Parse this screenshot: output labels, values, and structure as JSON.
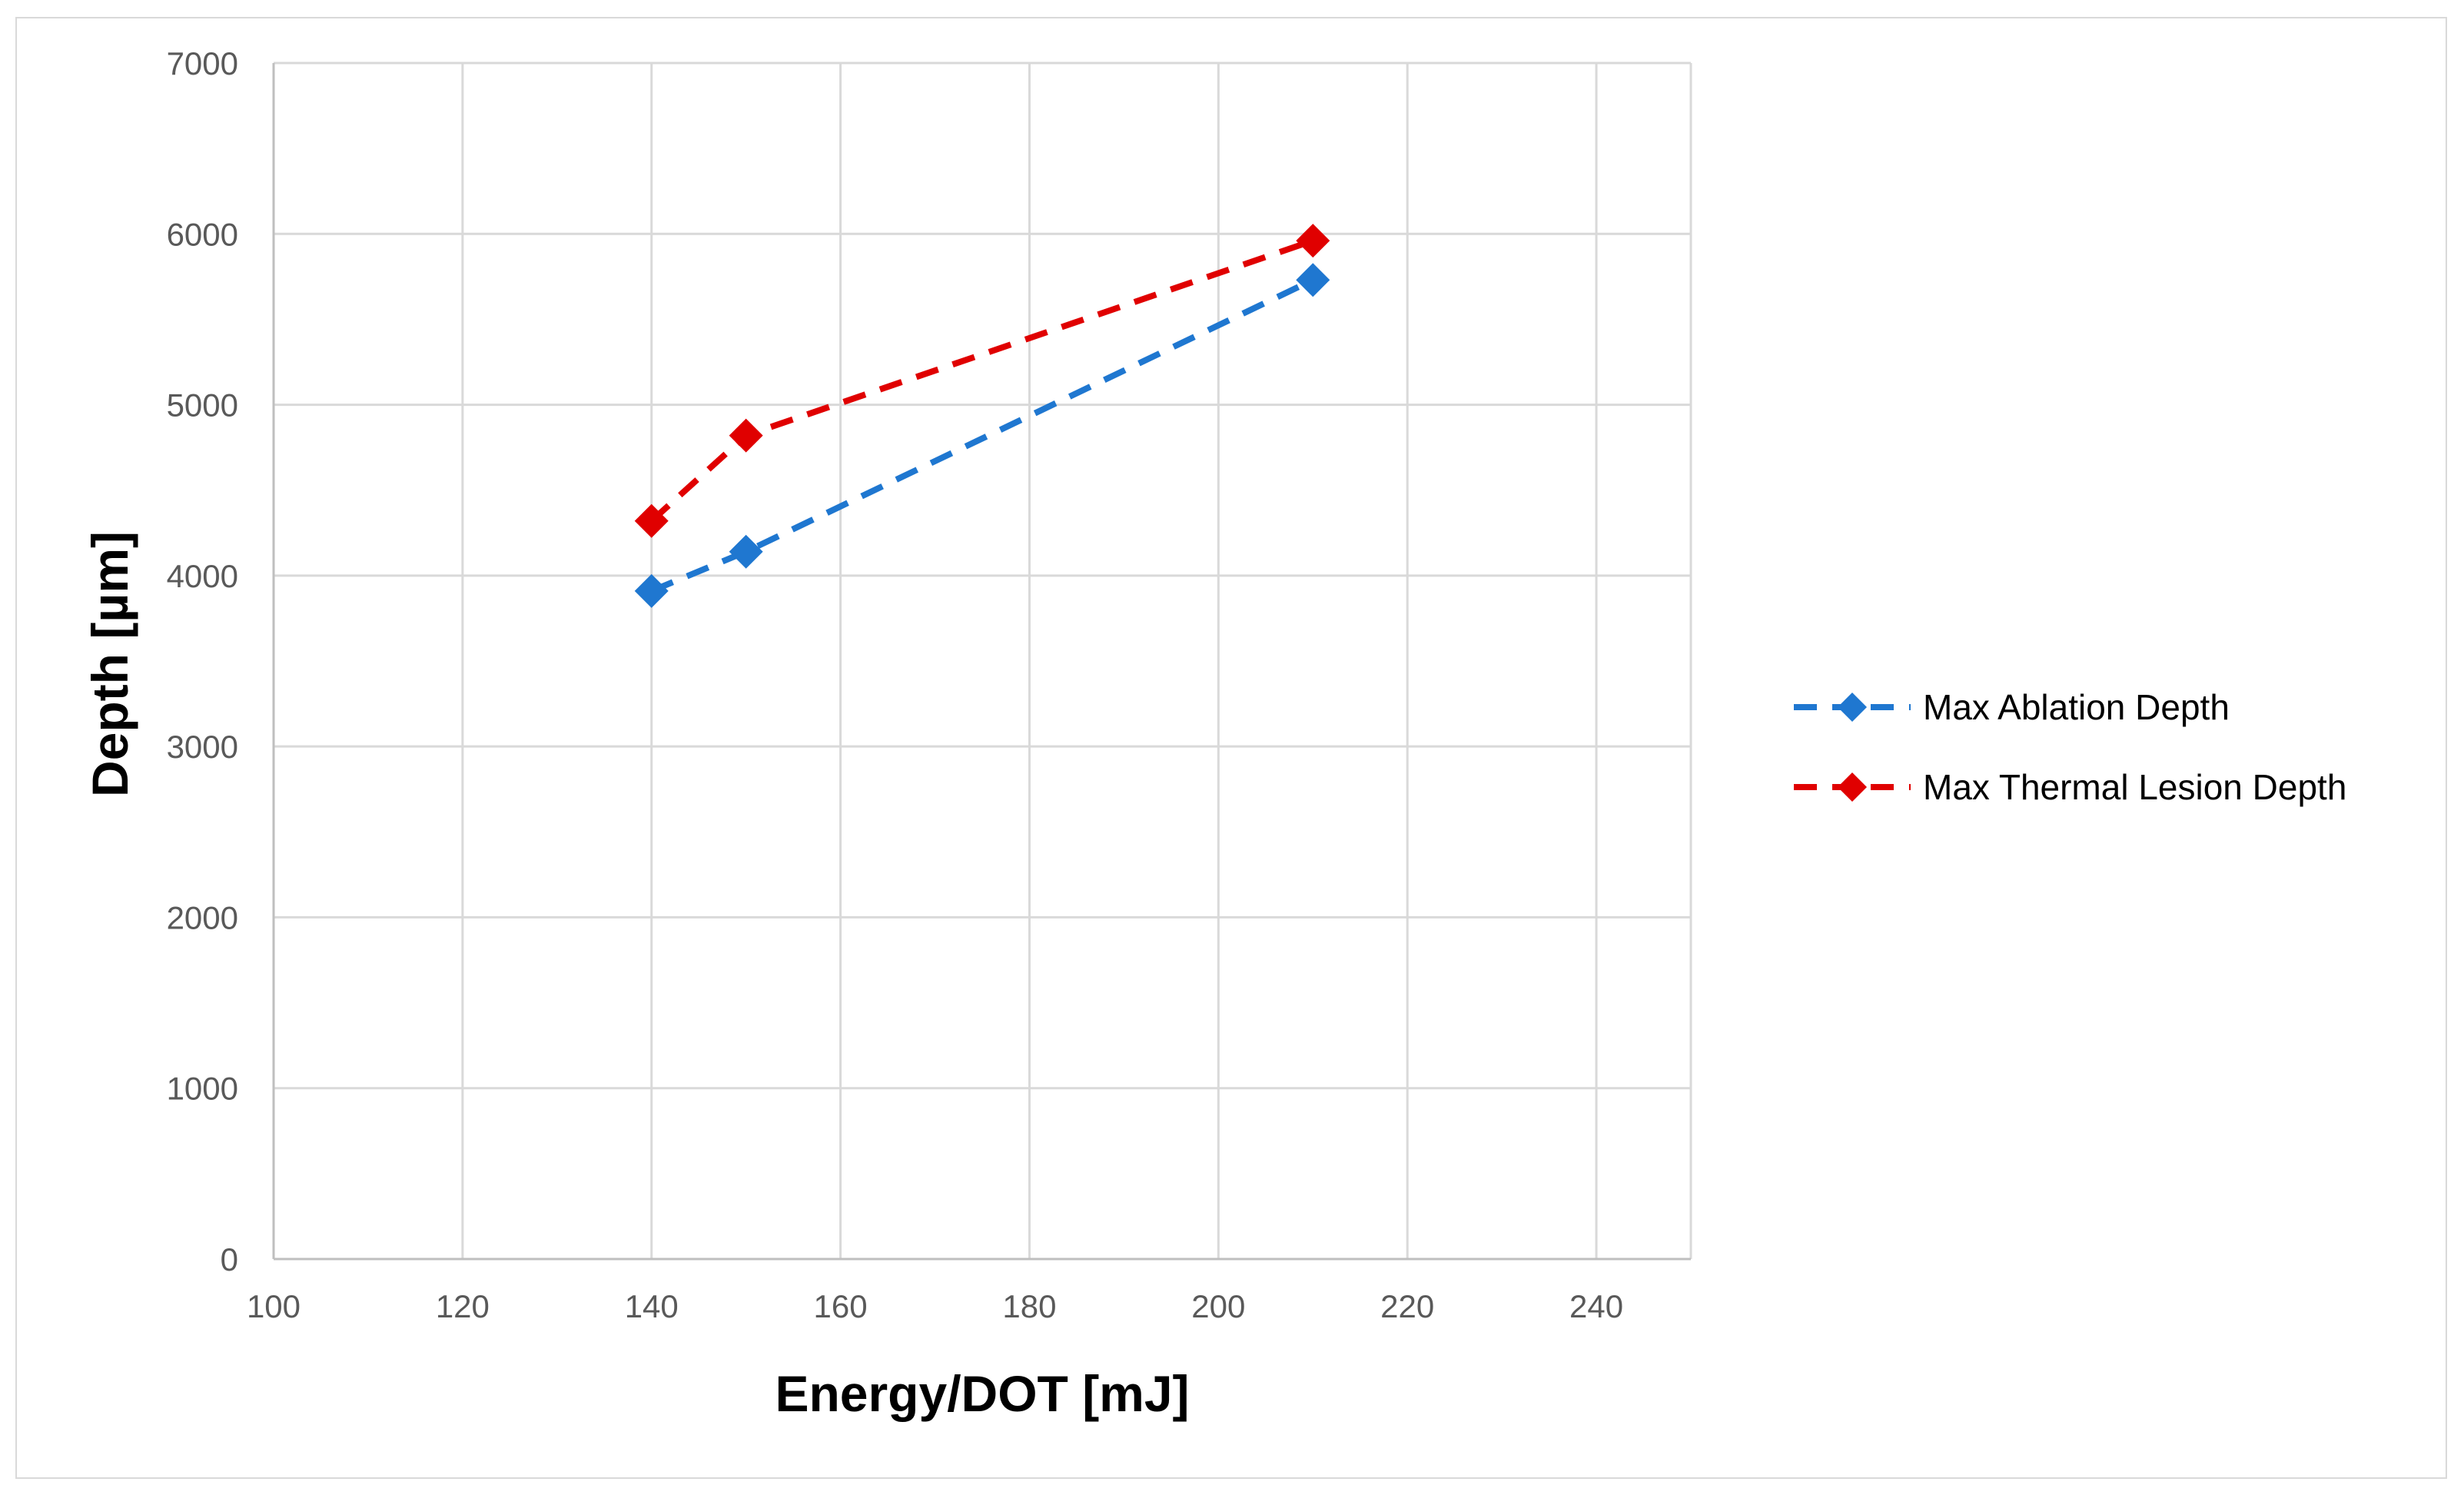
{
  "chart_data": {
    "type": "scatter",
    "title": "",
    "xlabel": "Energy/DOT [mJ]",
    "ylabel": "Depth [µm]",
    "xlim": [
      100,
      250
    ],
    "ylim": [
      0,
      7000
    ],
    "x_ticks": [
      100,
      120,
      140,
      160,
      180,
      200,
      220,
      240
    ],
    "y_ticks": [
      0,
      1000,
      2000,
      3000,
      4000,
      5000,
      6000,
      7000
    ],
    "grid": true,
    "legend_position": "right",
    "series": [
      {
        "name": "Max Ablation Depth",
        "color": "#1f77d0",
        "marker": "diamond",
        "line_style": "dashed",
        "x": [
          140,
          150,
          210
        ],
        "y": [
          3910,
          4140,
          5730
        ]
      },
      {
        "name": "Max Thermal Lesion Depth",
        "color": "#e00000",
        "marker": "diamond",
        "line_style": "dashed",
        "x": [
          140,
          150,
          210
        ],
        "y": [
          4320,
          4820,
          5960
        ]
      }
    ]
  }
}
